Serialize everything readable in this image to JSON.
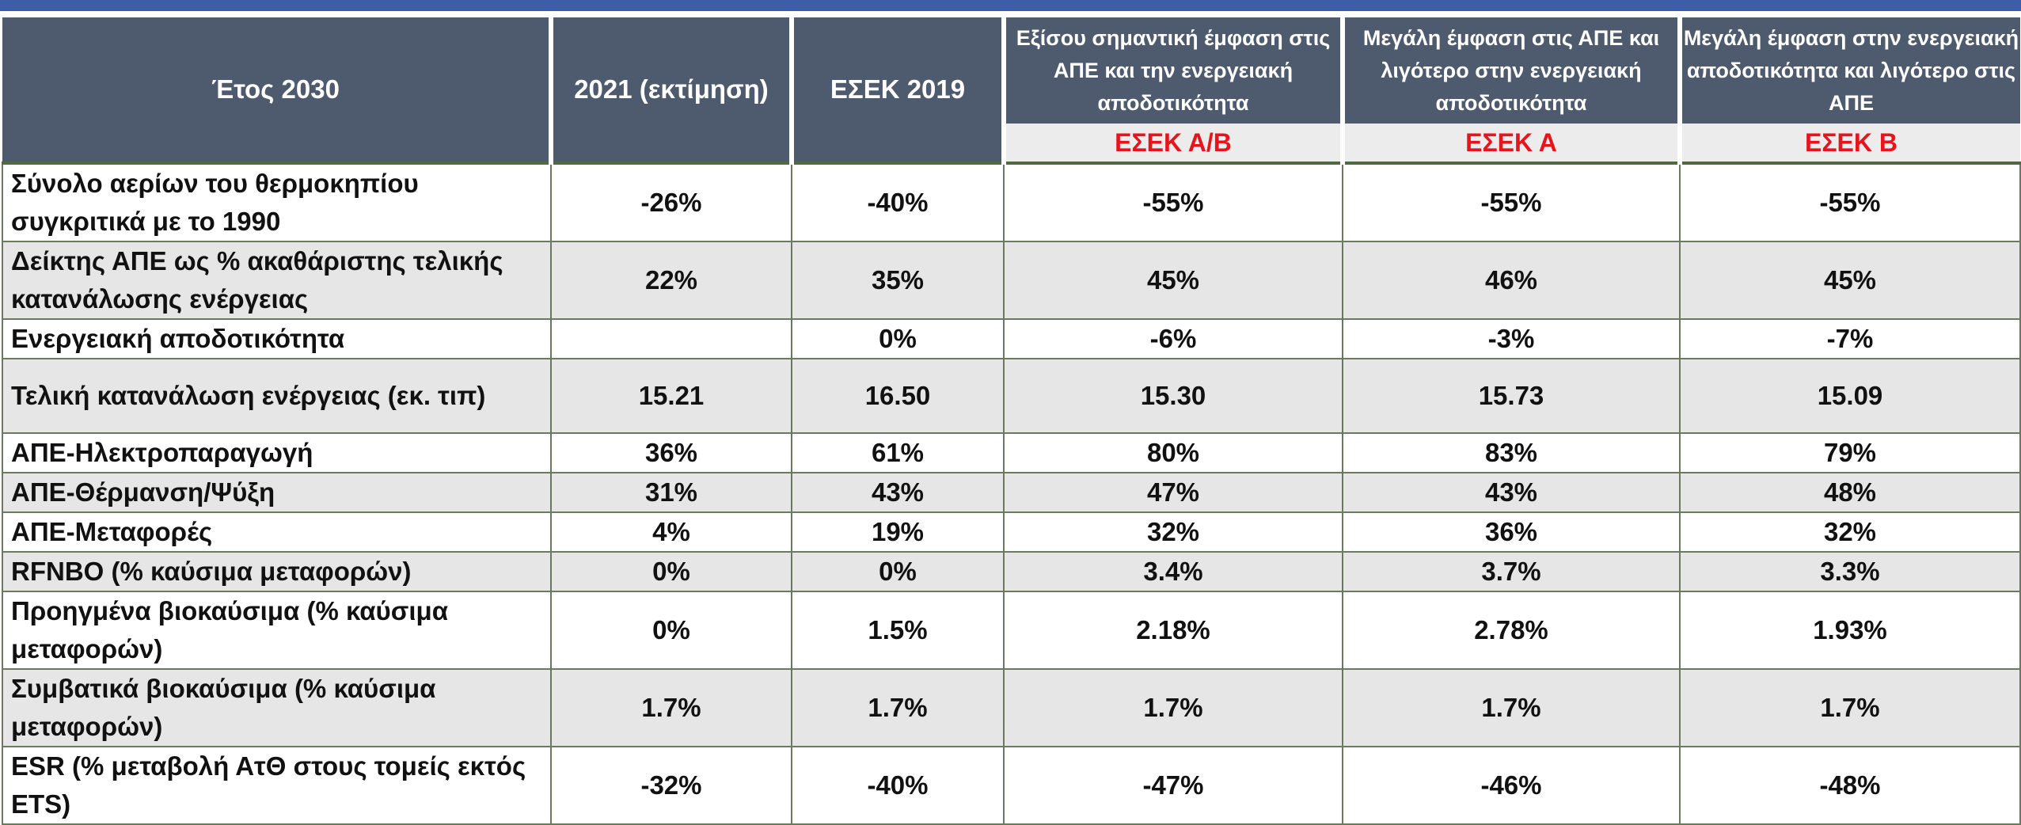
{
  "header": {
    "year_label": "Έτος 2030",
    "col_2021": "2021 (εκτίμηση)",
    "col_esek2019": "ΕΣΕΚ 2019",
    "scenarios": [
      {
        "desc": "Εξίσου σημαντική έμφαση στις ΑΠΕ και την ενεργειακή αποδοτικότητα",
        "code": "ΕΣΕΚ Α/Β"
      },
      {
        "desc": "Μεγάλη έμφαση στις ΑΠΕ και λιγότερο στην ενεργειακή αποδοτικότητα",
        "code": "ΕΣΕΚ Α"
      },
      {
        "desc": "Μεγάλη έμφαση στην ενεργειακή αποδοτικότητα και λιγότερο στις ΑΠΕ",
        "code": "ΕΣΕΚ Β"
      }
    ]
  },
  "rows": [
    {
      "label": "Σύνολο αερίων του θερμοκηπίου συγκριτικά με το 1990",
      "values": [
        "-26%",
        "-40%",
        "-55%",
        "-55%",
        "-55%"
      ]
    },
    {
      "label": "Δείκτης ΑΠΕ ως % ακαθάριστης τελικής κατανάλωσης ενέργειας",
      "values": [
        "22%",
        "35%",
        "45%",
        "46%",
        "45%"
      ]
    },
    {
      "label": "Ενεργειακή αποδοτικότητα",
      "values": [
        "",
        "0%",
        "-6%",
        "-3%",
        "-7%"
      ]
    },
    {
      "label": "Τελική κατανάλωση ενέργειας (εκ. τιπ)",
      "values": [
        "15.21",
        "16.50",
        "15.30",
        "15.73",
        "15.09"
      ]
    },
    {
      "label": "ΑΠΕ-Ηλεκτροπαραγωγή",
      "values": [
        "36%",
        "61%",
        "80%",
        "83%",
        "79%"
      ]
    },
    {
      "label": "ΑΠΕ-Θέρμανση/Ψύξη",
      "values": [
        "31%",
        "43%",
        "47%",
        "43%",
        "48%"
      ]
    },
    {
      "label": "ΑΠΕ-Μεταφορές",
      "values": [
        "4%",
        "19%",
        "32%",
        "36%",
        "32%"
      ]
    },
    {
      "label": "RFNBO (% καύσιμα μεταφορών)",
      "values": [
        "0%",
        "0%",
        "3.4%",
        "3.7%",
        "3.3%"
      ]
    },
    {
      "label": "Προηγμένα βιοκαύσιμα (% καύσιμα μεταφορών)",
      "values": [
        "0%",
        "1.5%",
        "2.18%",
        "2.78%",
        "1.93%"
      ]
    },
    {
      "label": "Συμβατικά βιοκαύσιμα (% καύσιμα μεταφορών)",
      "values": [
        "1.7%",
        "1.7%",
        "1.7%",
        "1.7%",
        "1.7%"
      ]
    },
    {
      "label": "ESR (% μεταβολή ΑτΘ στους τομείς εκτός ETS)",
      "values": [
        "-32%",
        "-40%",
        "-47%",
        "-46%",
        "-48%"
      ]
    }
  ]
}
